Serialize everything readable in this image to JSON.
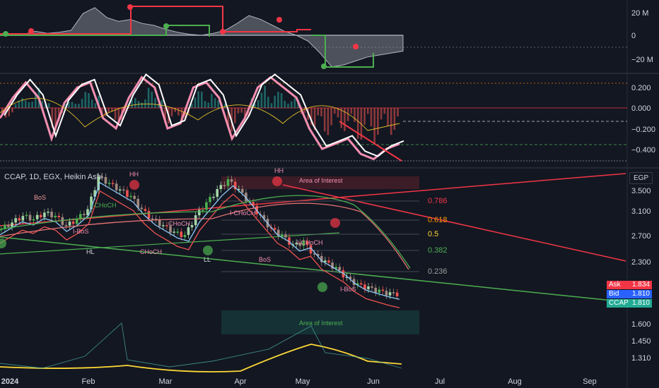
{
  "header": {
    "symbol_line": "CCAP, 1D, EGX, Heikin Ashi",
    "currency": "EGP"
  },
  "price_badges": [
    {
      "label": "Ask",
      "value": "1.834",
      "color": "#f23645"
    },
    {
      "label": "Bid",
      "value": "1.810",
      "color": "#2962ff"
    },
    {
      "label": "CCAP",
      "value": "1.810",
      "color": "#22ab94"
    }
  ],
  "chart_data": {
    "type": "line",
    "x_ticks": [
      "2024",
      "Feb",
      "Mar",
      "Apr",
      "May",
      "Jun",
      "Jul",
      "Aug",
      "Sep"
    ],
    "panes": [
      {
        "name": "volume-flow",
        "y_ticks": [
          "20 M",
          "0",
          "−20 M"
        ],
        "values": [
          0,
          0,
          1,
          4,
          2,
          3,
          5,
          22,
          28,
          18,
          14,
          16,
          12,
          10,
          6,
          3,
          1,
          0,
          2,
          5,
          12,
          20,
          16,
          10,
          4,
          0,
          -6,
          -18,
          -32,
          -30,
          -26,
          -22,
          -20,
          -18,
          -16
        ]
      },
      {
        "name": "oscillator",
        "y_ticks": [
          "0.200",
          "0.000",
          "−0.200",
          "−0.400"
        ],
        "values": [
          -0.1,
          0.1,
          0.25,
          0.1,
          -0.3,
          0.05,
          0.2,
          0.25,
          -0.1,
          -0.2,
          0.1,
          0.3,
          0.2,
          -0.2,
          -0.15,
          0.2,
          0.25,
          0.1,
          -0.3,
          -0.1,
          0.2,
          0.3,
          0.2,
          0.1,
          -0.2,
          -0.4,
          -0.35,
          -0.3,
          -0.45,
          -0.5,
          -0.4,
          -0.35
        ]
      },
      {
        "name": "price",
        "y_ticks": [
          "3.500",
          "3.100",
          "2.700",
          "2.300",
          "1.600",
          "1.450",
          "1.310"
        ],
        "close": [
          2.8,
          2.9,
          3.0,
          2.95,
          3.05,
          3.0,
          2.85,
          2.95,
          3.1,
          3.6,
          3.5,
          3.4,
          3.3,
          3.1,
          2.95,
          2.85,
          2.75,
          2.7,
          3.0,
          3.2,
          3.4,
          3.55,
          3.4,
          3.2,
          3.0,
          2.8,
          2.7,
          2.55,
          2.6,
          2.4,
          2.3,
          2.2,
          2.05,
          1.95,
          1.9,
          1.85,
          1.81
        ]
      }
    ],
    "fib_levels": [
      "0.786",
      "0.618",
      "0.5",
      "0.382",
      "0.236"
    ],
    "annotations": [
      "HH",
      "HH",
      "BoS",
      "I-CHoCH",
      "I-BoS",
      "HL",
      "CHoCH",
      "I-CHoCH",
      "CHoCH",
      "LL",
      "BoS",
      "I-CHoCH",
      "I-BoS",
      "Area of Interest",
      "Area of Interest"
    ]
  }
}
